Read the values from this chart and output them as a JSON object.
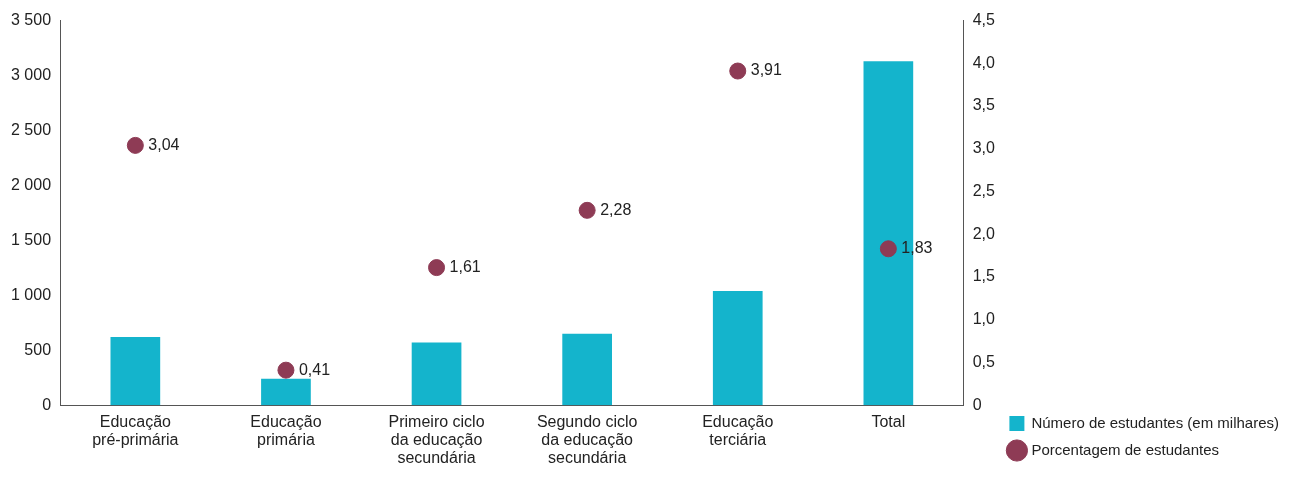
{
  "chart_data": {
    "type": "bar",
    "categories": [
      "Educação pré-primária",
      "Educação primária",
      "Primeiro ciclo da educação secundária",
      "Segundo ciclo da educação secundária",
      "Educação terciária",
      "Total"
    ],
    "series": [
      {
        "name": "Número de estudantes (em milhares)",
        "color": "#14b4cc",
        "values": [
          620,
          240,
          570,
          650,
          1040,
          3130
        ]
      },
      {
        "name": "Porcentagem de estudantes",
        "type": "scatter",
        "axis": "y2",
        "color": "#8e3b55",
        "values": [
          3.04,
          0.41,
          1.61,
          2.28,
          3.91,
          1.83
        ],
        "value_labels": [
          "3,04",
          "0,41",
          "1,61",
          "2,28",
          "3,91",
          "1,83"
        ]
      }
    ],
    "ylim": [
      0,
      3500
    ],
    "yticks": [
      0,
      {
        "value": 500,
        "label": "500"
      },
      {
        "value": 1000,
        "label": "1 000"
      },
      {
        "value": 1500,
        "label": "1 500"
      },
      {
        "value": 2000,
        "label": "2 000"
      },
      {
        "value": 2500,
        "label": "2 500"
      },
      {
        "value": 3000,
        "label": "3 000"
      },
      {
        "value": 3500,
        "label": "3 500"
      }
    ],
    "y2lim": [
      0,
      4.5
    ],
    "y2ticks": [
      0,
      {
        "value": 0.5,
        "label": "0,5"
      },
      {
        "value": 1,
        "label": "1,0"
      },
      {
        "value": 1.5,
        "label": "1,5"
      },
      {
        "value": 2,
        "label": "2,0"
      },
      {
        "value": 2.5,
        "label": "2,5"
      },
      {
        "value": 3,
        "label": "3,0"
      },
      {
        "value": 3.5,
        "label": "3,5"
      },
      {
        "value": 4,
        "label": "4,0"
      },
      {
        "value": 4.5,
        "label": "4,5"
      }
    ],
    "grid": false,
    "legend": "bottom right",
    "marker": "circle"
  }
}
